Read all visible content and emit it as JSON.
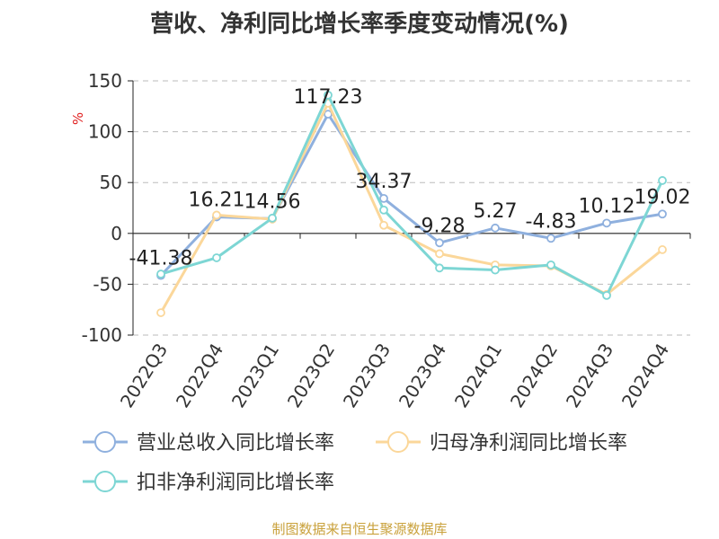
{
  "title": "营收、净利同比增长率季度变动情况(%)",
  "source": "制图数据来自恒生聚源数据库",
  "unit_label": "%",
  "colors": {
    "revenue": "#8fb0de",
    "net_profit": "#fbd79a",
    "deducted_profit": "#7dd6d4",
    "unit": "#e02020",
    "source": "#c9a13b",
    "grid": "#bbbbbb",
    "axis": "#222222"
  },
  "chart_data": {
    "type": "line",
    "title": "营收、净利同比增长率季度变动情况(%)",
    "ylabel": "%",
    "xlabel": "",
    "ylim": [
      -100,
      150
    ],
    "yticks": [
      150,
      100,
      50,
      0,
      -50,
      -100
    ],
    "grid": true,
    "legend_position": "bottom",
    "categories": [
      "2022Q3",
      "2022Q4",
      "2023Q1",
      "2023Q2",
      "2023Q3",
      "2023Q4",
      "2024Q1",
      "2024Q2",
      "2024Q3",
      "2024Q4"
    ],
    "series": [
      {
        "name": "营业总收入同比增长率",
        "color": "#8fb0de",
        "values": [
          -41.38,
          16.21,
          14.56,
          117.23,
          34.37,
          -9.28,
          5.27,
          -4.83,
          10.12,
          19.02
        ],
        "labels": [
          "-41.38",
          "16.21",
          "14.56",
          "117.23",
          "34.37",
          "-9.28",
          "5.27",
          "-4.83",
          "10.12",
          "19.02"
        ]
      },
      {
        "name": "归母净利润同比增长率",
        "color": "#fbd79a",
        "values": [
          -78,
          18,
          14,
          128,
          8,
          -20,
          -31,
          -32,
          -60,
          -16
        ]
      },
      {
        "name": "扣非净利润同比增长率",
        "color": "#7dd6d4",
        "values": [
          -40,
          -24,
          15,
          136,
          23,
          -34,
          -36,
          -31,
          -61,
          52
        ]
      }
    ]
  }
}
